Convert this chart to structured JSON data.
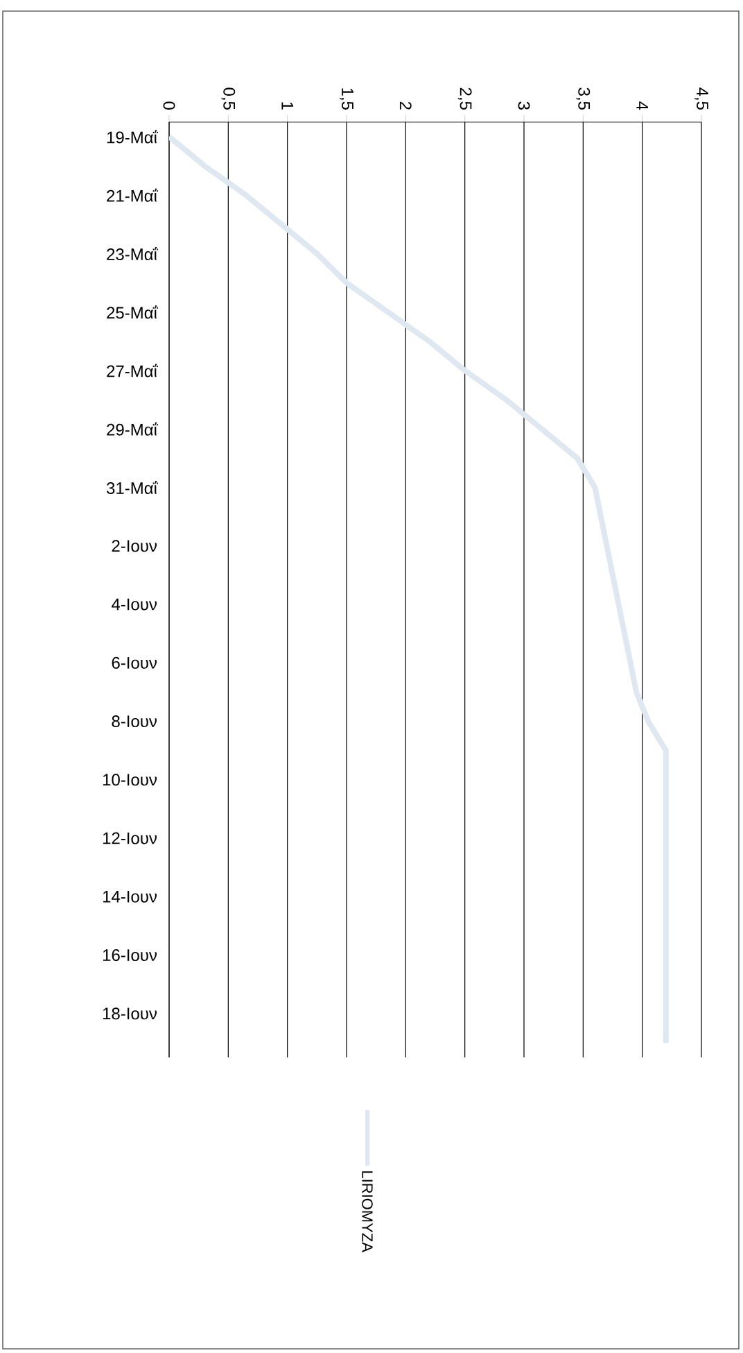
{
  "chart_data": {
    "type": "line",
    "categories": [
      "19-Μαΐ",
      null,
      "21-Μαΐ",
      null,
      "23-Μαΐ",
      null,
      "25-Μαΐ",
      null,
      "27-Μαΐ",
      null,
      "29-Μαΐ",
      null,
      "31-Μαΐ",
      null,
      "2-Ιουν",
      null,
      "4-Ιουν",
      null,
      "6-Ιουν",
      null,
      "8-Ιουν",
      null,
      "10-Ιουν",
      null,
      "12-Ιουν",
      null,
      "14-Ιουν",
      null,
      "16-Ιουν",
      null,
      "18-Ιουν",
      null
    ],
    "series": [
      {
        "name": "LIRIOMYZA",
        "color": "#dfe7f1",
        "values": [
          0,
          0.3,
          0.65,
          0.95,
          1.25,
          1.5,
          1.85,
          2.2,
          2.5,
          2.85,
          3.15,
          3.45,
          3.6,
          3.65,
          3.7,
          3.75,
          3.8,
          3.85,
          3.9,
          3.95,
          4.05,
          4.2,
          4.2,
          4.2,
          4.2,
          4.2,
          4.2,
          4.2,
          4.2,
          4.2,
          4.2,
          4.2
        ]
      }
    ],
    "orientation": "horizontal",
    "xlim": [
      0,
      4.5
    ],
    "xticks": [
      0,
      {
        "value": 0.5,
        "label": "0,5"
      },
      1,
      {
        "value": 1.5,
        "label": "1,5"
      },
      2,
      {
        "value": 2.5,
        "label": "2,5"
      },
      3,
      {
        "value": 3.5,
        "label": "3,5"
      },
      4,
      {
        "value": 4.5,
        "label": "4,5"
      }
    ],
    "grid": "x",
    "legend": "bottom",
    "marker": "none",
    "line_style": "solid"
  }
}
